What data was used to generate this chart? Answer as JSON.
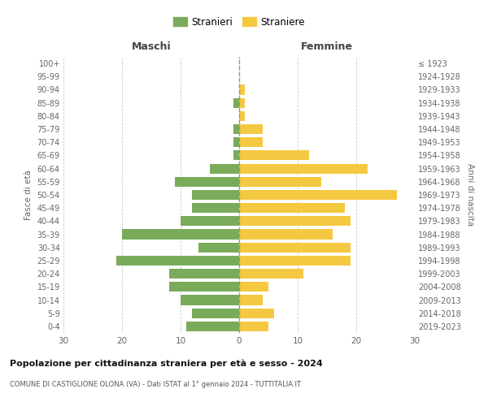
{
  "age_groups": [
    "0-4",
    "5-9",
    "10-14",
    "15-19",
    "20-24",
    "25-29",
    "30-34",
    "35-39",
    "40-44",
    "45-49",
    "50-54",
    "55-59",
    "60-64",
    "65-69",
    "70-74",
    "75-79",
    "80-84",
    "85-89",
    "90-94",
    "95-99",
    "100+"
  ],
  "birth_years": [
    "2019-2023",
    "2014-2018",
    "2009-2013",
    "2004-2008",
    "1999-2003",
    "1994-1998",
    "1989-1993",
    "1984-1988",
    "1979-1983",
    "1974-1978",
    "1969-1973",
    "1964-1968",
    "1959-1963",
    "1954-1958",
    "1949-1953",
    "1944-1948",
    "1939-1943",
    "1934-1938",
    "1929-1933",
    "1924-1928",
    "≤ 1923"
  ],
  "maschi": [
    9,
    8,
    10,
    12,
    12,
    21,
    7,
    20,
    10,
    8,
    8,
    11,
    5,
    1,
    1,
    1,
    0,
    1,
    0,
    0,
    0
  ],
  "femmine": [
    5,
    6,
    4,
    5,
    11,
    19,
    19,
    16,
    19,
    18,
    27,
    14,
    22,
    12,
    4,
    4,
    1,
    1,
    1,
    0,
    0
  ],
  "color_maschi": "#7aab5a",
  "color_femmine": "#f5c842",
  "title": "Popolazione per cittadinanza straniera per età e sesso - 2024",
  "subtitle": "COMUNE DI CASTIGLIONE OLONA (VA) - Dati ISTAT al 1° gennaio 2024 - TUTTITALIA.IT",
  "xlabel_left": "Maschi",
  "xlabel_right": "Femmine",
  "ylabel_left": "Fasce di età",
  "ylabel_right": "Anni di nascita",
  "legend_maschi": "Stranieri",
  "legend_femmine": "Straniere",
  "xlim": 30,
  "background_color": "#ffffff"
}
